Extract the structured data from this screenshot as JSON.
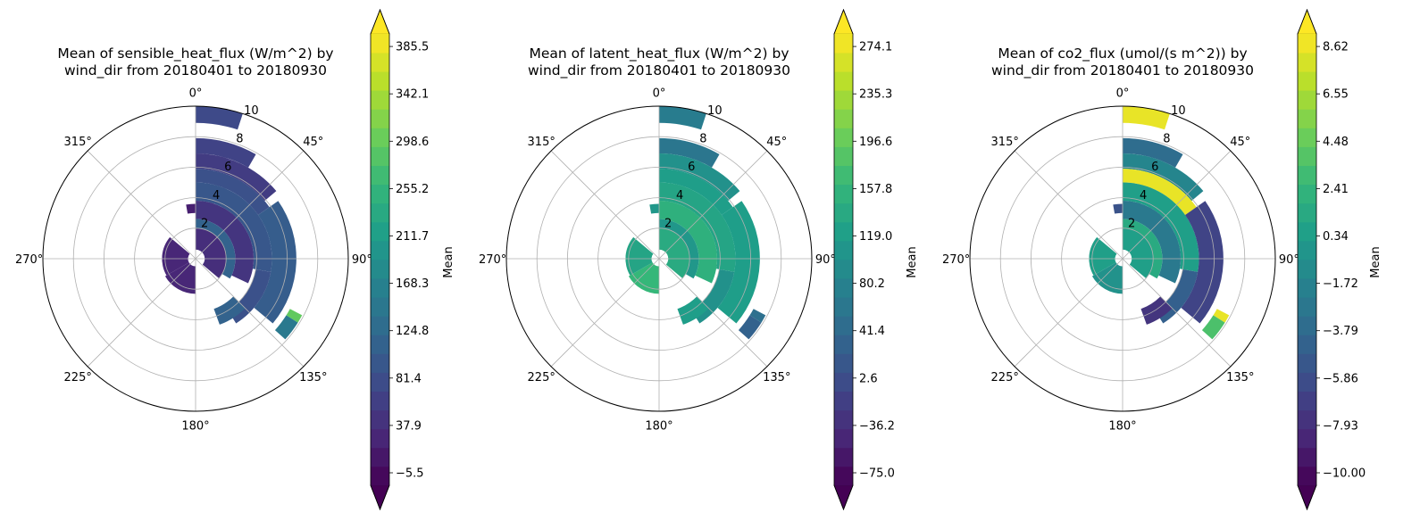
{
  "chart_data": [
    {
      "type": "polar-heatmap",
      "title": "Mean of sensible_heat_flux (W/m^2) by\nwind_dir from 20180401 to 20180930",
      "angle_labels": [
        "0°",
        "45°",
        "90°",
        "135°",
        "180°",
        "225°",
        "270°",
        "315°"
      ],
      "r_ticks": [
        2,
        4,
        6,
        8,
        10
      ],
      "r_lim": [
        0,
        10
      ],
      "colorbar_label": "Mean",
      "colorbar_ticks": [
        "−5.5",
        "37.9",
        "81.4",
        "124.8",
        "168.3",
        "211.7",
        "255.2",
        "298.6",
        "342.1",
        "385.5"
      ],
      "colorbar_range": [
        -27.2,
        407.2
      ],
      "colorbar_extend": "both",
      "colormap": "viridis",
      "sectors": [
        {
          "dir_from": 0,
          "dir_to": 18,
          "r_from": 8.9,
          "r_to": 10,
          "value": 70
        },
        {
          "dir_from": 0,
          "dir_to": 30,
          "r_from": 6.9,
          "r_to": 7.9,
          "value": 60
        },
        {
          "dir_from": 0,
          "dir_to": 50,
          "r_from": 5.9,
          "r_to": 6.9,
          "value": 50
        },
        {
          "dir_from": 0,
          "dir_to": 55,
          "r_from": 5.0,
          "r_to": 5.9,
          "value": 80
        },
        {
          "dir_from": 0,
          "dir_to": 100,
          "r_from": 3.8,
          "r_to": 5.0,
          "value": 90
        },
        {
          "dir_from": 0,
          "dir_to": 115,
          "r_from": 2.6,
          "r_to": 3.8,
          "value": 40
        },
        {
          "dir_from": 0,
          "dir_to": 120,
          "r_from": 2.0,
          "r_to": 2.6,
          "value": 110
        },
        {
          "dir_from": 55,
          "dir_to": 130,
          "r_from": 5.0,
          "r_to": 6.6,
          "value": 100
        },
        {
          "dir_from": 100,
          "dir_to": 148,
          "r_from": 4.0,
          "r_to": 5.0,
          "value": 80
        },
        {
          "dir_from": 0,
          "dir_to": 130,
          "r_from": 0.6,
          "r_to": 2.0,
          "value": 30
        },
        {
          "dir_from": 118,
          "dir_to": 122,
          "r_from": 7.0,
          "r_to": 7.9,
          "value": 300
        },
        {
          "dir_from": 122,
          "dir_to": 132,
          "r_from": 7.0,
          "r_to": 7.9,
          "value": 150
        },
        {
          "dir_from": 135,
          "dir_to": 160,
          "r_from": 3.5,
          "r_to": 4.6,
          "value": 110
        },
        {
          "dir_from": 180,
          "dir_to": 240,
          "r_from": 0.5,
          "r_to": 2.3,
          "value": 20
        },
        {
          "dir_from": 240,
          "dir_to": 310,
          "r_from": 0.5,
          "r_to": 2.2,
          "value": 20
        },
        {
          "dir_from": 350,
          "dir_to": 360,
          "r_from": 3.0,
          "r_to": 3.6,
          "value": 10
        }
      ]
    },
    {
      "type": "polar-heatmap",
      "title": "Mean of latent_heat_flux (W/m^2) by\nwind_dir from 20180401 to 20180930",
      "angle_labels": [
        "0°",
        "45°",
        "90°",
        "135°",
        "180°",
        "225°",
        "270°",
        "315°"
      ],
      "r_ticks": [
        2,
        4,
        6,
        8,
        10
      ],
      "r_lim": [
        0,
        10
      ],
      "colorbar_label": "Mean",
      "colorbar_ticks": [
        "−75.0",
        "−36.2",
        "2.6",
        "41.4",
        "80.2",
        "119.0",
        "157.8",
        "196.6",
        "235.3",
        "274.1"
      ],
      "colorbar_range": [
        -75.0,
        293.5
      ],
      "colorbar_extend": "both",
      "colormap": "viridis",
      "sectors": [
        {
          "dir_from": 0,
          "dir_to": 18,
          "r_from": 8.9,
          "r_to": 10,
          "value": 80
        },
        {
          "dir_from": 0,
          "dir_to": 30,
          "r_from": 6.9,
          "r_to": 7.9,
          "value": 70
        },
        {
          "dir_from": 0,
          "dir_to": 50,
          "r_from": 5.9,
          "r_to": 6.9,
          "value": 110
        },
        {
          "dir_from": 0,
          "dir_to": 55,
          "r_from": 5.0,
          "r_to": 5.9,
          "value": 130
        },
        {
          "dir_from": 0,
          "dir_to": 100,
          "r_from": 3.8,
          "r_to": 5.0,
          "value": 140
        },
        {
          "dir_from": 0,
          "dir_to": 115,
          "r_from": 2.6,
          "r_to": 3.8,
          "value": 160
        },
        {
          "dir_from": 0,
          "dir_to": 120,
          "r_from": 2.0,
          "r_to": 2.6,
          "value": 120
        },
        {
          "dir_from": 55,
          "dir_to": 130,
          "r_from": 5.0,
          "r_to": 6.6,
          "value": 130
        },
        {
          "dir_from": 100,
          "dir_to": 148,
          "r_from": 4.0,
          "r_to": 5.0,
          "value": 110
        },
        {
          "dir_from": 0,
          "dir_to": 130,
          "r_from": 0.6,
          "r_to": 2.0,
          "value": 150
        },
        {
          "dir_from": 118,
          "dir_to": 122,
          "r_from": 7.0,
          "r_to": 7.9,
          "value": 60
        },
        {
          "dir_from": 122,
          "dir_to": 132,
          "r_from": 7.0,
          "r_to": 7.9,
          "value": 40
        },
        {
          "dir_from": 135,
          "dir_to": 160,
          "r_from": 3.5,
          "r_to": 4.6,
          "value": 130
        },
        {
          "dir_from": 180,
          "dir_to": 240,
          "r_from": 0.5,
          "r_to": 2.3,
          "value": 170
        },
        {
          "dir_from": 240,
          "dir_to": 310,
          "r_from": 0.5,
          "r_to": 2.2,
          "value": 140
        },
        {
          "dir_from": 350,
          "dir_to": 360,
          "r_from": 3.0,
          "r_to": 3.6,
          "value": 120
        }
      ]
    },
    {
      "type": "polar-heatmap",
      "title": "Mean of co2_flux (umol/(s m^2)) by\nwind_dir from 20180401 to 20180930",
      "angle_labels": [
        "0°",
        "45°",
        "90°",
        "135°",
        "180°",
        "225°",
        "270°",
        "315°"
      ],
      "r_ticks": [
        2,
        4,
        6,
        8,
        10
      ],
      "r_lim": [
        0,
        10
      ],
      "colorbar_label": "Mean",
      "colorbar_ticks": [
        "−10.00",
        "−7.93",
        "−5.86",
        "−3.79",
        "−1.72",
        "0.34",
        "2.41",
        "4.48",
        "6.55",
        "8.62"
      ],
      "colorbar_range": [
        -10.0,
        9.65
      ],
      "colorbar_extend": "both",
      "colormap": "viridis",
      "sectors": [
        {
          "dir_from": 0,
          "dir_to": 18,
          "r_from": 8.9,
          "r_to": 10,
          "value": 9.0
        },
        {
          "dir_from": 0,
          "dir_to": 30,
          "r_from": 6.9,
          "r_to": 7.9,
          "value": -3.0
        },
        {
          "dir_from": 0,
          "dir_to": 50,
          "r_from": 5.9,
          "r_to": 6.9,
          "value": -1.0
        },
        {
          "dir_from": 0,
          "dir_to": 55,
          "r_from": 5.0,
          "r_to": 5.9,
          "value": 9.0
        },
        {
          "dir_from": 0,
          "dir_to": 100,
          "r_from": 3.8,
          "r_to": 5.0,
          "value": 1.0
        },
        {
          "dir_from": 0,
          "dir_to": 115,
          "r_from": 2.6,
          "r_to": 3.8,
          "value": -2.0
        },
        {
          "dir_from": 0,
          "dir_to": 120,
          "r_from": 2.0,
          "r_to": 2.6,
          "value": 2.0
        },
        {
          "dir_from": 55,
          "dir_to": 130,
          "r_from": 5.0,
          "r_to": 6.6,
          "value": -6.0
        },
        {
          "dir_from": 100,
          "dir_to": 148,
          "r_from": 4.0,
          "r_to": 5.0,
          "value": -4.0
        },
        {
          "dir_from": 0,
          "dir_to": 130,
          "r_from": 0.6,
          "r_to": 2.0,
          "value": 1.0
        },
        {
          "dir_from": 118,
          "dir_to": 122,
          "r_from": 7.0,
          "r_to": 7.9,
          "value": 9.0
        },
        {
          "dir_from": 122,
          "dir_to": 132,
          "r_from": 7.0,
          "r_to": 7.9,
          "value": 4.0
        },
        {
          "dir_from": 135,
          "dir_to": 160,
          "r_from": 3.5,
          "r_to": 4.6,
          "value": -7.0
        },
        {
          "dir_from": 180,
          "dir_to": 240,
          "r_from": 0.5,
          "r_to": 2.3,
          "value": 0.0
        },
        {
          "dir_from": 240,
          "dir_to": 310,
          "r_from": 0.5,
          "r_to": 2.2,
          "value": 1.0
        },
        {
          "dir_from": 350,
          "dir_to": 360,
          "r_from": 3.0,
          "r_to": 3.6,
          "value": -5.0
        }
      ]
    }
  ]
}
